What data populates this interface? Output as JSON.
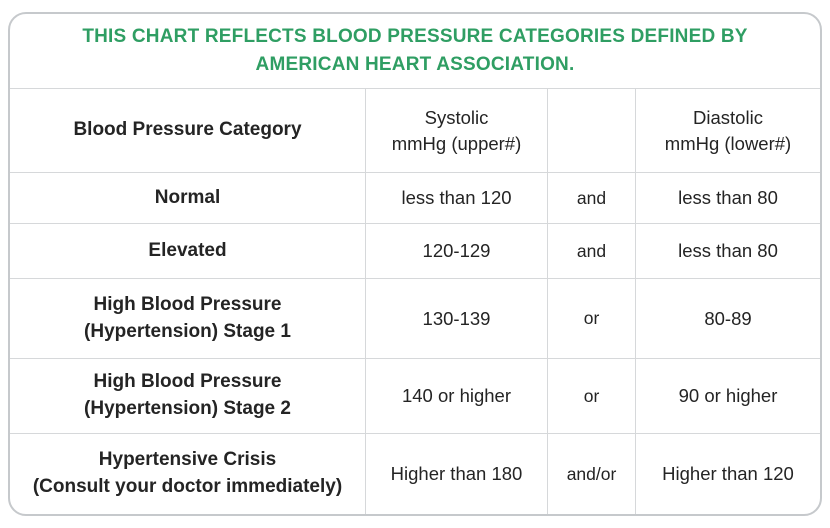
{
  "colors": {
    "accent_green": "#2f9e63",
    "outer_border": "#c6c9cc",
    "grid_line": "#d6d8da",
    "text": "#242424"
  },
  "chart_data": {
    "type": "table",
    "title": "THIS CHART REFLECTS BLOOD PRESSURE CATEGORIES DEFINED BY\nAMERICAN HEART ASSOCIATION.",
    "columns": [
      "Blood Pressure Category",
      "Systolic\nmmHg (upper#)",
      "",
      "Diastolic\nmmHg (lower#)"
    ],
    "rows": [
      [
        "Normal",
        "less than 120",
        "and",
        "less than 80"
      ],
      [
        "Elevated",
        "120-129",
        "and",
        "less than 80"
      ],
      [
        "High Blood Pressure\n(Hypertension) Stage 1",
        "130-139",
        "or",
        "80-89"
      ],
      [
        "High Blood Pressure\n(Hypertension) Stage 2",
        "140 or higher",
        "or",
        "90 or higher"
      ],
      [
        "Hypertensive Crisis\n(Consult your doctor immediately)",
        "Higher than 180",
        "and/or",
        "Higher than 120"
      ]
    ]
  }
}
